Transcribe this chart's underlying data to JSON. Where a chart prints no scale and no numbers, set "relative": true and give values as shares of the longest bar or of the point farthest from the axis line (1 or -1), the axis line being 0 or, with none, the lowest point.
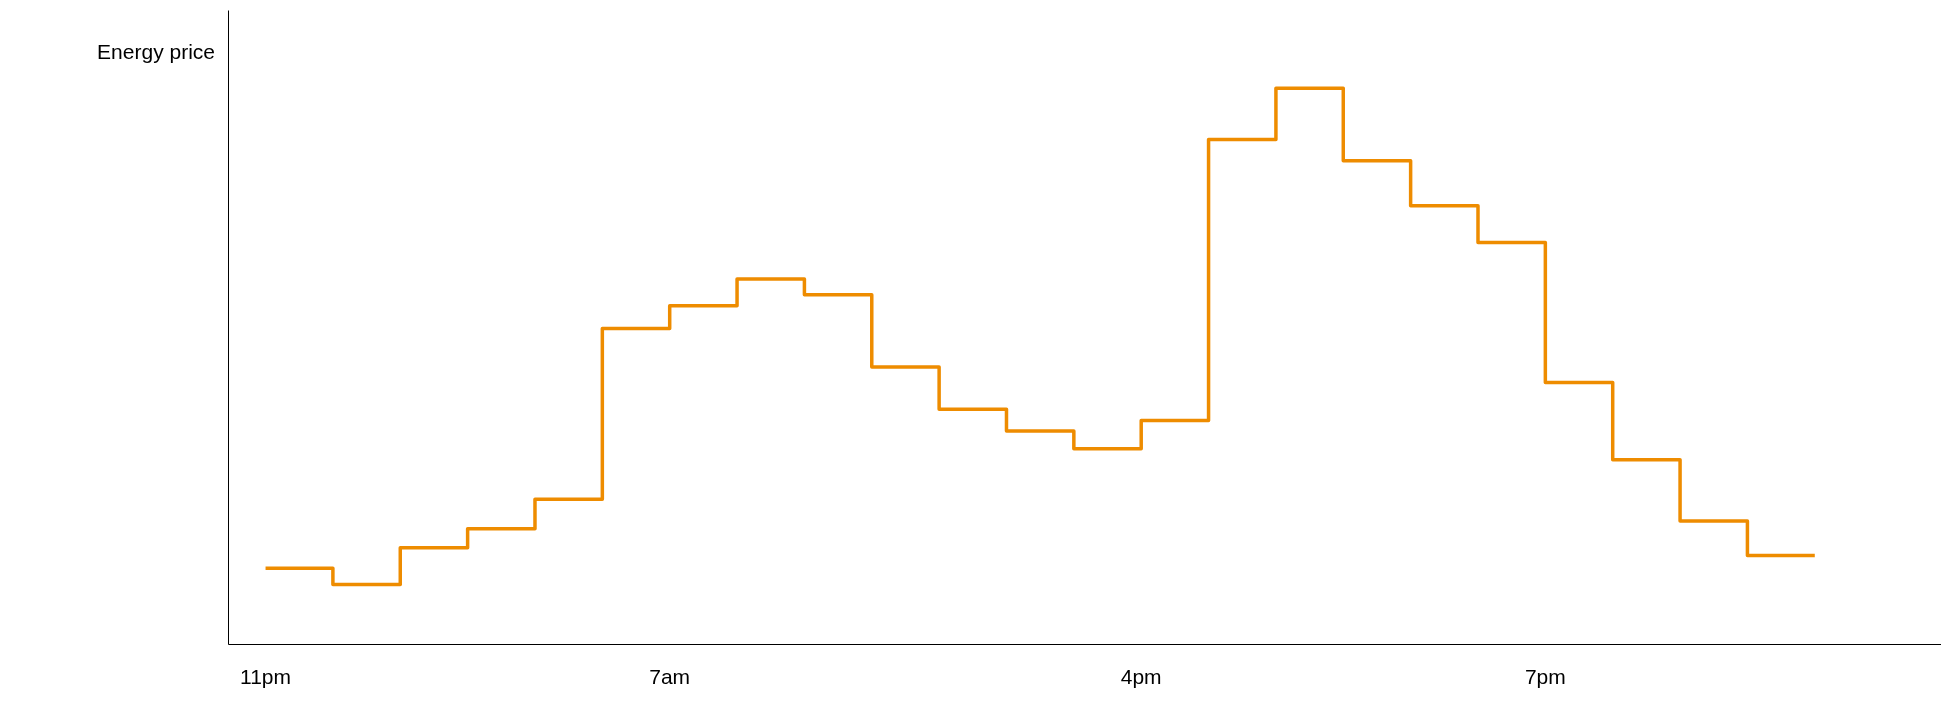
{
  "chart_data": {
    "type": "step",
    "ylabel": "Energy price",
    "relative": true,
    "grid": false,
    "marker": "none",
    "line_style": "solid",
    "categories": [
      "11pm",
      null,
      null,
      null,
      null,
      null,
      "7am",
      null,
      null,
      null,
      null,
      null,
      null,
      "4pm",
      null,
      null,
      null,
      null,
      null,
      "7pm",
      null,
      null,
      null,
      null
    ],
    "series": [
      {
        "color": "#ee8c00",
        "values": [
          0.137,
          0.108,
          0.174,
          0.208,
          0.261,
          0.568,
          0.609,
          0.657,
          0.629,
          0.499,
          0.423,
          0.384,
          0.352,
          0.403,
          0.908,
          1,
          0.87,
          0.789,
          0.723,
          0.471,
          0.332,
          0.222,
          0.16,
          0.16
        ]
      }
    ]
  }
}
